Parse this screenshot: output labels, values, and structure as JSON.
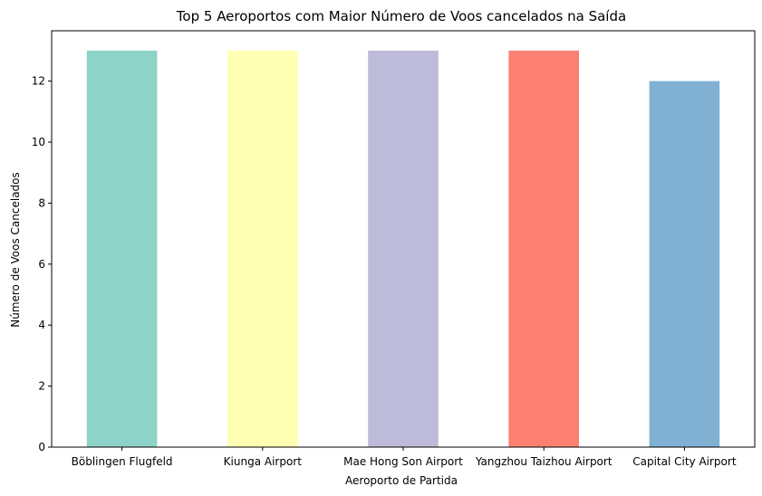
{
  "chart_data": {
    "type": "bar",
    "title": "Top 5 Aeroportos com Maior Número de Voos cancelados na Saída",
    "xlabel": "Aeroporto de Partida",
    "ylabel": "Número de Voos Cancelados",
    "categories": [
      "Böblingen Flugfeld",
      "Kiunga Airport",
      "Mae Hong Son Airport",
      "Yangzhou Taizhou Airport",
      "Capital City Airport"
    ],
    "values": [
      13,
      13,
      13,
      13,
      12
    ],
    "colors": [
      "#8dd3c7",
      "#ffffb3",
      "#bebada",
      "#fb8072",
      "#80b1d3"
    ],
    "ylim": [
      0,
      13.65
    ],
    "yticks": [
      0,
      2,
      4,
      6,
      8,
      10,
      12
    ],
    "grid": false,
    "legend": "none"
  }
}
